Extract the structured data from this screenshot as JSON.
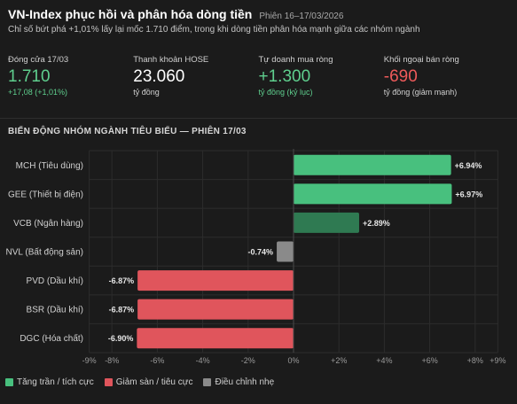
{
  "header": {
    "title": "VN-Index phục hồi và phân hóa dòng tiền",
    "session": "Phiên 16–17/03/2026",
    "subtitle": "Chỉ số bứt phá +1,01% lấy lại mốc 1.710 điểm, trong khi dòng tiền phân hóa mạnh giữa các nhóm ngành"
  },
  "stats": [
    {
      "label": "Đóng cửa 17/03",
      "value": "1.710",
      "sub": "+17,08 (+1,01%)",
      "value_color": "#5fcf8e",
      "sub_color": "#5fcf8e"
    },
    {
      "label": "Thanh khoản HOSE",
      "value": "23.060",
      "sub": "tỷ đồng",
      "value_color": "#ffffff",
      "sub_color": "#d0d0d0"
    },
    {
      "label": "Tự doanh mua ròng",
      "value": "+1.300",
      "sub": "tỷ đồng (kỷ lục)",
      "value_color": "#5fcf8e",
      "sub_color": "#5fcf8e"
    },
    {
      "label": "Khối ngoại bán ròng",
      "value": "-690",
      "sub": "tỷ đồng (giảm mạnh)",
      "value_color": "#ee5a5a",
      "sub_color": "#d0d0d0"
    }
  ],
  "section_title": "BIẾN ĐỘNG NHÓM NGÀNH TIÊU BIỂU — PHIÊN 17/03",
  "chart_data": {
    "type": "bar",
    "orientation": "horizontal",
    "categories": [
      "MCH (Tiêu dùng)",
      "GEE (Thiết bị điện)",
      "VCB (Ngân hàng)",
      "NVL (Bất động sản)",
      "PVD (Dầu khí)",
      "BSR (Dầu khí)",
      "DGC (Hóa chất)"
    ],
    "values": [
      6.94,
      6.97,
      2.89,
      -0.74,
      -6.87,
      -6.87,
      -6.9
    ],
    "value_labels": [
      "+6.94%",
      "+6.97%",
      "+2.89%",
      "-0.74%",
      "-6.87%",
      "-6.87%",
      "-6.90%"
    ],
    "bar_groups": [
      "ceiling",
      "ceiling",
      "positive",
      "adjust",
      "floor",
      "floor",
      "floor"
    ],
    "xlim": [
      -9,
      9
    ],
    "xticks": [
      -9,
      -8,
      -6,
      -4,
      -2,
      0,
      2,
      4,
      6,
      8,
      9
    ],
    "xtick_labels": [
      "-9%",
      "-8%",
      "-6%",
      "-4%",
      "-2%",
      "0%",
      "+2%",
      "+4%",
      "+6%",
      "+8%",
      "+9%"
    ],
    "grid": true,
    "colors": {
      "ceiling": "#48c07e",
      "positive": "#2f7a52",
      "adjust": "#8a8a8a",
      "floor": "#e0555c",
      "grid": "#2c2c2c",
      "axis": "#4a4a4a"
    }
  },
  "legend": [
    {
      "label": "Tăng trần / tích cực",
      "color": "#48c07e"
    },
    {
      "label": "Giảm sàn / tiêu cực",
      "color": "#e0555c"
    },
    {
      "label": "Điều chỉnh nhẹ",
      "color": "#8a8a8a"
    }
  ]
}
